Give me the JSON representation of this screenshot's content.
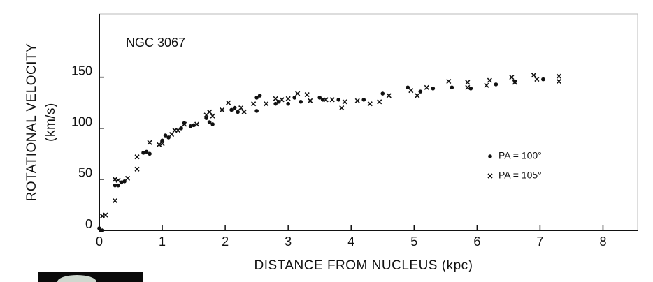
{
  "chart_data": {
    "type": "scatter",
    "annotation": "NGC 3067",
    "xlabel": "DISTANCE FROM NUCLEUS (kpc)",
    "ylabel": [
      "ROTATIONAL VELOCITY",
      "(km/s)"
    ],
    "xlim": [
      0,
      8.55
    ],
    "ylim": [
      0,
      212
    ],
    "xticks": [
      0,
      1,
      2,
      3,
      4,
      5,
      6,
      7,
      8
    ],
    "yticks": [
      0,
      50,
      100,
      150
    ],
    "legend": "center right",
    "series": [
      {
        "name": "PA = 100°",
        "marker": "dot",
        "color": "#111111",
        "x": [
          0.0,
          0.02,
          0.05,
          0.25,
          0.3,
          0.35,
          0.4,
          0.7,
          0.75,
          0.8,
          1.0,
          1.05,
          1.1,
          1.3,
          1.35,
          1.45,
          1.5,
          1.7,
          1.75,
          1.8,
          2.1,
          2.15,
          2.2,
          2.5,
          2.5,
          2.55,
          2.8,
          2.85,
          3.0,
          3.1,
          3.2,
          3.5,
          3.55,
          3.8,
          4.2,
          4.5,
          4.9,
          5.1,
          5.3,
          5.6,
          5.9,
          6.3,
          6.6,
          7.05
        ],
        "values": [
          2,
          0,
          0,
          44,
          44,
          47,
          48,
          76,
          77,
          75,
          88,
          93,
          91,
          100,
          105,
          102,
          103,
          110,
          106,
          104,
          118,
          120,
          116,
          117,
          130,
          132,
          124,
          126,
          124,
          130,
          126,
          130,
          128,
          128,
          128,
          134,
          140,
          136,
          139,
          140,
          139,
          143,
          146,
          148
        ]
      },
      {
        "name": "PA = 105°",
        "marker": "x",
        "color": "#111111",
        "x": [
          0.05,
          0.1,
          0.25,
          0.25,
          0.3,
          0.45,
          0.6,
          0.6,
          0.8,
          0.95,
          1.0,
          1.15,
          1.2,
          1.25,
          1.35,
          1.55,
          1.7,
          1.75,
          1.8,
          1.95,
          2.05,
          2.25,
          2.3,
          2.45,
          2.65,
          2.8,
          2.9,
          3.0,
          3.15,
          3.3,
          3.35,
          3.6,
          3.7,
          3.85,
          3.9,
          4.1,
          4.3,
          4.45,
          4.6,
          4.95,
          5.05,
          5.2,
          5.55,
          5.85,
          5.85,
          6.15,
          6.2,
          6.55,
          6.6,
          6.9,
          6.95,
          7.3,
          7.3
        ],
        "values": [
          14,
          15,
          50,
          29,
          49,
          51,
          60,
          72,
          86,
          84,
          85,
          94,
          98,
          98,
          104,
          104,
          113,
          116,
          112,
          118,
          125,
          120,
          116,
          124,
          124,
          129,
          128,
          129,
          134,
          133,
          127,
          128,
          128,
          120,
          126,
          127,
          124,
          126,
          132,
          137,
          132,
          140,
          146,
          145,
          140,
          142,
          147,
          150,
          145,
          152,
          148,
          151,
          146
        ]
      }
    ]
  }
}
